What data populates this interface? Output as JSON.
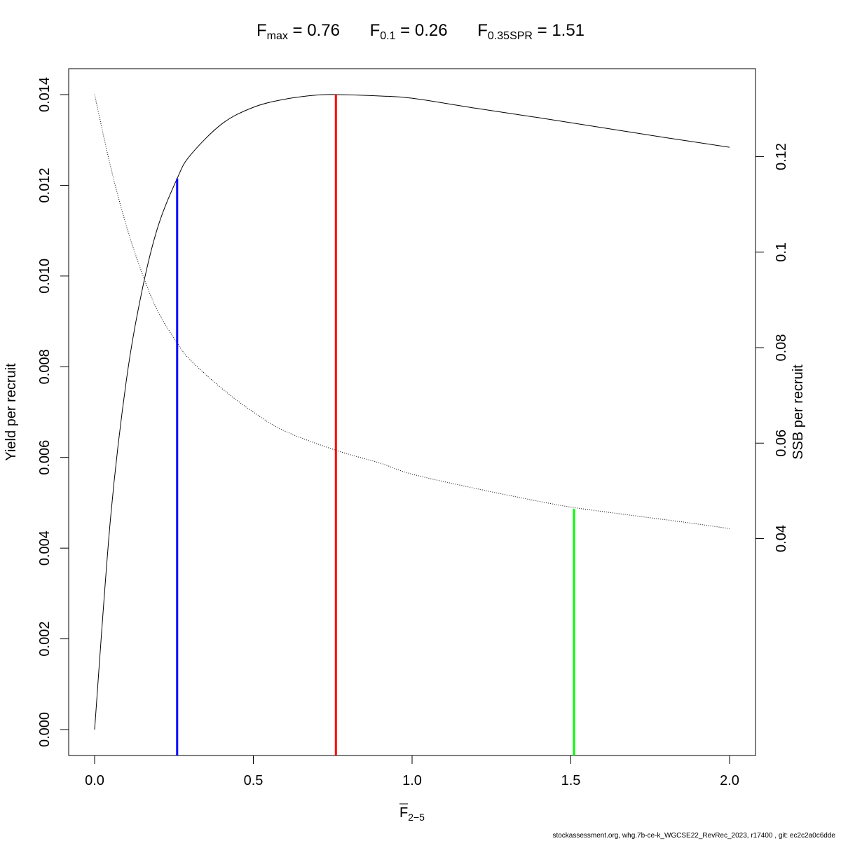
{
  "chart_data": {
    "type": "line",
    "title_terms": [
      {
        "main": "F",
        "sub": "max",
        "rest": " = 0.76"
      },
      {
        "main": "F",
        "sub": "0.1",
        "rest": " = 0.26"
      },
      {
        "main": "F",
        "sub": "0.35SPR",
        "rest": " = 1.51"
      }
    ],
    "xlabel_main": "F",
    "xlabel_sub": "2−5",
    "ylabel_left": "Yield per recruit",
    "ylabel_right": "SSB per recruit",
    "xlim": [
      0,
      2
    ],
    "ylim_left": [
      0,
      0.014
    ],
    "ylim_right": [
      0,
      0.133
    ],
    "x_ticks": [
      0,
      0.5,
      1,
      1.5,
      2
    ],
    "x_tick_labels": [
      "0.0",
      "0.5",
      "1.0",
      "1.5",
      "2.0"
    ],
    "y_left_ticks": [
      0,
      0.002,
      0.004,
      0.006,
      0.008,
      0.01,
      0.012,
      0.014
    ],
    "y_left_tick_labels": [
      "0.000",
      "0.002",
      "0.004",
      "0.006",
      "0.008",
      "0.010",
      "0.012",
      "0.014"
    ],
    "y_right_ticks": [
      0.04,
      0.06,
      0.08,
      0.1,
      0.12
    ],
    "y_right_tick_labels": [
      "0.04",
      "0.06",
      "0.08",
      "0.1",
      "0.12"
    ],
    "series": [
      {
        "name": "Yield per recruit",
        "axis": "left",
        "style": "solid",
        "color": "#000000",
        "x": [
          0,
          0.05,
          0.1,
          0.15,
          0.2,
          0.26,
          0.3,
          0.4,
          0.5,
          0.6,
          0.7,
          0.76,
          0.9,
          1.0,
          1.2,
          1.4,
          1.6,
          1.8,
          2.0
        ],
        "y": [
          0,
          0.00465,
          0.0077,
          0.0097,
          0.0111,
          0.01215,
          0.01265,
          0.01335,
          0.01372,
          0.0139,
          0.01399,
          0.014,
          0.01397,
          0.01392,
          0.0137,
          0.01349,
          0.01327,
          0.01305,
          0.01284
        ]
      },
      {
        "name": "SSB per recruit",
        "axis": "right",
        "style": "dotted",
        "color": "#000000",
        "x": [
          0,
          0.05,
          0.1,
          0.15,
          0.2,
          0.26,
          0.3,
          0.4,
          0.5,
          0.6,
          0.76,
          0.9,
          1.0,
          1.2,
          1.4,
          1.51,
          1.7,
          1.85,
          2.0
        ],
        "y": [
          0.133,
          0.118,
          0.1055,
          0.0955,
          0.0875,
          0.081,
          0.0775,
          0.0715,
          0.0665,
          0.0625,
          0.0585,
          0.0558,
          0.0535,
          0.0505,
          0.0478,
          0.0465,
          0.0448,
          0.0435,
          0.0421
        ]
      }
    ],
    "reference_lines": [
      {
        "label": "F0.1",
        "x": 0.26,
        "y_left_top": 0.01215,
        "color": "#0000ff"
      },
      {
        "label": "Fmax",
        "x": 0.76,
        "y_left_top": 0.014,
        "color": "#ff0000"
      },
      {
        "label": "F0.35SPR",
        "x": 1.51,
        "y_left_top": 0.00487,
        "color": "#00ff00"
      }
    ]
  },
  "footer": "stockassessment.org, whg.7b-ce-k_WGCSE22_RevRec_2023, r17400 , git: ec2c2a0c6dde"
}
